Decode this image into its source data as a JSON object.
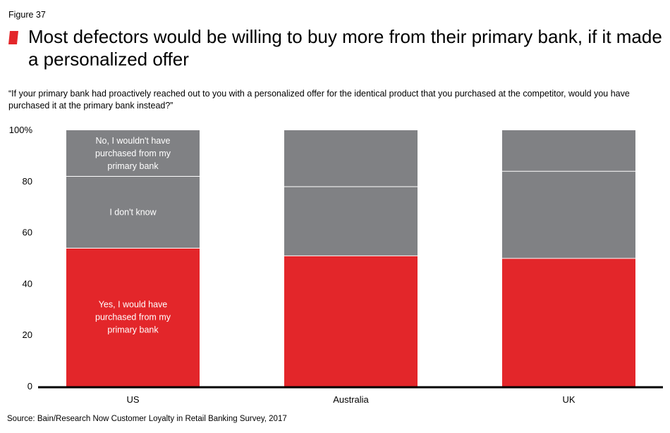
{
  "figure_label": "Figure 37",
  "title": "Most defectors would be willing to buy more from their primary bank, if it made a personalized offer",
  "subtitle": "“If your primary bank had proactively reached out to you with a personalized offer for the identical product that you purchased at the competitor, would you have purchased it at the primary bank instead?”",
  "source": "Source: Bain/Research Now Customer Loyalty in Retail Banking Survey, 2017",
  "colors": {
    "accent": "#e3262a",
    "grey": "#808184",
    "axis": "#000000"
  },
  "chart_data": {
    "type": "bar",
    "stacked": true,
    "categories": [
      "US",
      "Australia",
      "UK"
    ],
    "series": [
      {
        "name": "Yes, I would have purchased from my primary bank",
        "values": [
          54,
          51,
          50
        ],
        "color": "#e3262a"
      },
      {
        "name": "I don't know",
        "values": [
          28,
          27,
          34
        ],
        "color": "#808184"
      },
      {
        "name": "No, I wouldn't have purchased from my primary bank",
        "values": [
          18,
          22,
          16
        ],
        "color": "#808184"
      }
    ],
    "segment_labels": [
      [
        "Yes, I would have",
        "purchased from my",
        "primary bank"
      ],
      [
        "I don't know"
      ],
      [
        "No, I wouldn't have",
        "purchased from my",
        "primary bank"
      ]
    ],
    "ylim": [
      0,
      100
    ],
    "yticks": [
      "0",
      "20",
      "40",
      "60",
      "80",
      "100%"
    ],
    "ytick_values": [
      0,
      20,
      40,
      60,
      80,
      100
    ],
    "grid": false,
    "legend": "none (labels inside first bar)"
  }
}
